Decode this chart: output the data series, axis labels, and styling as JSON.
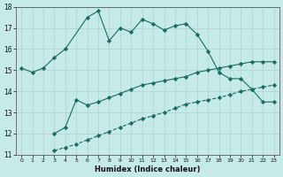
{
  "xlabel": "Humidex (Indice chaleur)",
  "background_color": "#c6eae8",
  "grid_color": "#aad4d0",
  "line_color": "#1a6b60",
  "xlim": [
    -0.5,
    23.5
  ],
  "ylim": [
    11,
    18
  ],
  "xticks": [
    0,
    1,
    2,
    3,
    4,
    5,
    6,
    7,
    8,
    9,
    10,
    11,
    12,
    13,
    14,
    15,
    16,
    17,
    18,
    19,
    20,
    21,
    22,
    23
  ],
  "yticks": [
    11,
    12,
    13,
    14,
    15,
    16,
    17,
    18
  ],
  "line1_x": [
    0,
    1,
    2,
    3,
    4,
    6,
    7,
    8,
    9,
    10,
    11,
    12,
    13,
    14,
    15,
    16,
    17,
    18,
    19,
    20,
    21,
    22,
    23
  ],
  "line1_y": [
    15.1,
    14.9,
    15.1,
    15.6,
    16.0,
    17.5,
    17.8,
    16.4,
    17.0,
    16.8,
    17.4,
    17.2,
    16.9,
    17.1,
    17.2,
    16.7,
    15.9,
    14.9,
    14.6,
    14.6,
    14.1,
    13.5,
    13.5
  ],
  "line2_x": [
    3,
    4,
    5,
    6,
    7,
    8,
    9,
    10,
    11,
    12,
    13,
    14,
    15,
    16,
    17,
    18,
    19,
    20,
    21,
    22,
    23
  ],
  "line2_y": [
    12.0,
    12.3,
    13.6,
    13.35,
    13.5,
    13.7,
    13.9,
    14.1,
    14.3,
    14.4,
    14.5,
    14.6,
    14.7,
    14.9,
    15.0,
    15.1,
    15.2,
    15.3,
    15.4,
    15.4,
    15.4
  ],
  "line3_x": [
    3,
    4,
    5,
    6,
    7,
    8,
    9,
    10,
    11,
    12,
    13,
    14,
    15,
    16,
    17,
    18,
    19,
    20,
    21,
    22,
    23
  ],
  "line3_y": [
    11.2,
    11.35,
    11.5,
    11.7,
    11.9,
    12.1,
    12.3,
    12.5,
    12.7,
    12.85,
    13.0,
    13.2,
    13.4,
    13.5,
    13.6,
    13.7,
    13.85,
    14.0,
    14.1,
    14.2,
    14.3
  ]
}
